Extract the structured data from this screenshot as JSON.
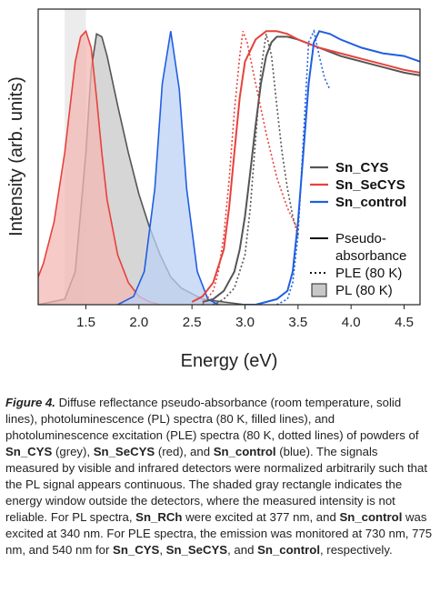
{
  "chart_data": {
    "type": "line",
    "xlabel": "Energy (eV)",
    "ylabel": "Intensity (arb. units)",
    "xlim": [
      1.05,
      4.65
    ],
    "ylim": [
      0,
      1.07
    ],
    "xticks": [
      1.5,
      2.0,
      2.5,
      3.0,
      3.5,
      4.0,
      4.5
    ],
    "xtick_labels": [
      "1.5",
      "2.0",
      "2.5",
      "3.0",
      "3.5",
      "4.0",
      "4.5"
    ],
    "grid": false,
    "legend_placement": "right",
    "shaded_region": {
      "x": [
        1.3,
        1.5
      ],
      "label": ""
    },
    "legend": {
      "series": [
        {
          "name": "Sn_CYS",
          "color": "#555555"
        },
        {
          "name": "Sn_SeCYS",
          "color": "#e8413c"
        },
        {
          "name": "Sn_control",
          "color": "#1f5fe0"
        }
      ],
      "styles": [
        {
          "label": "Pseudo-",
          "label2": "absorbance",
          "style": "solid"
        },
        {
          "label": "PLE (80 K)",
          "style": "dotted"
        },
        {
          "label": "PL (80 K)",
          "style": "filled"
        }
      ]
    },
    "series": [
      {
        "name": "Sn_CYS",
        "kind": "PL",
        "color": "#555555",
        "fill": "#c8c8c8",
        "x": [
          1.05,
          1.3,
          1.4,
          1.5,
          1.55,
          1.6,
          1.65,
          1.7,
          1.8,
          1.9,
          2.0,
          2.1,
          2.2,
          2.3,
          2.4,
          2.6,
          2.8,
          3.0
        ],
        "y": [
          0.0,
          0.02,
          0.12,
          0.55,
          0.85,
          0.98,
          0.97,
          0.9,
          0.72,
          0.55,
          0.4,
          0.28,
          0.18,
          0.1,
          0.06,
          0.02,
          0.01,
          0.0
        ]
      },
      {
        "name": "Sn_SeCYS",
        "kind": "PL",
        "color": "#e8413c",
        "fill": "#f2b8b4",
        "x": [
          1.05,
          1.1,
          1.2,
          1.3,
          1.4,
          1.45,
          1.5,
          1.55,
          1.6,
          1.65,
          1.7,
          1.8,
          1.9,
          2.0,
          2.1,
          2.2
        ],
        "y": [
          0.1,
          0.15,
          0.3,
          0.55,
          0.88,
          0.97,
          0.99,
          0.93,
          0.75,
          0.55,
          0.38,
          0.18,
          0.08,
          0.03,
          0.01,
          0.0
        ]
      },
      {
        "name": "Sn_control",
        "kind": "PL",
        "color": "#1f5fe0",
        "fill": "#bcd2f6",
        "x": [
          1.8,
          1.95,
          2.05,
          2.15,
          2.22,
          2.3,
          2.38,
          2.45,
          2.55,
          2.65,
          2.75
        ],
        "y": [
          0.0,
          0.03,
          0.12,
          0.42,
          0.8,
          0.99,
          0.78,
          0.42,
          0.12,
          0.02,
          0.0
        ]
      },
      {
        "name": "Sn_CYS",
        "kind": "Pseudo-absorbance",
        "color": "#555555",
        "x": [
          2.6,
          2.7,
          2.8,
          2.9,
          2.95,
          3.0,
          3.05,
          3.1,
          3.15,
          3.2,
          3.25,
          3.3,
          3.4,
          3.5,
          3.7,
          3.9,
          4.1,
          4.3,
          4.5,
          4.65
        ],
        "y": [
          0.01,
          0.02,
          0.05,
          0.12,
          0.2,
          0.32,
          0.48,
          0.65,
          0.8,
          0.9,
          0.95,
          0.97,
          0.97,
          0.96,
          0.93,
          0.9,
          0.88,
          0.86,
          0.84,
          0.83
        ]
      },
      {
        "name": "Sn_SeCYS",
        "kind": "Pseudo-absorbance",
        "color": "#e8413c",
        "x": [
          2.5,
          2.6,
          2.7,
          2.8,
          2.85,
          2.9,
          2.95,
          3.0,
          3.1,
          3.2,
          3.3,
          3.4,
          3.5,
          3.7,
          3.9,
          4.1,
          4.3,
          4.5,
          4.65
        ],
        "y": [
          0.01,
          0.03,
          0.08,
          0.2,
          0.35,
          0.55,
          0.75,
          0.88,
          0.96,
          0.99,
          0.99,
          0.98,
          0.96,
          0.93,
          0.91,
          0.89,
          0.87,
          0.85,
          0.84
        ]
      },
      {
        "name": "Sn_control",
        "kind": "Pseudo-absorbance",
        "color": "#1f5fe0",
        "x": [
          3.0,
          3.1,
          3.2,
          3.3,
          3.4,
          3.45,
          3.5,
          3.55,
          3.6,
          3.65,
          3.7,
          3.8,
          3.9,
          4.1,
          4.3,
          4.5,
          4.65
        ],
        "y": [
          0.0,
          0.0,
          0.01,
          0.02,
          0.05,
          0.12,
          0.3,
          0.55,
          0.8,
          0.95,
          0.99,
          0.98,
          0.96,
          0.93,
          0.91,
          0.9,
          0.88
        ]
      },
      {
        "name": "Sn_CYS",
        "kind": "PLE",
        "color": "#555555",
        "x": [
          2.7,
          2.8,
          2.9,
          3.0,
          3.05,
          3.1,
          3.15,
          3.2,
          3.25,
          3.3,
          3.35,
          3.4,
          3.45,
          3.5
        ],
        "y": [
          0.0,
          0.02,
          0.06,
          0.18,
          0.35,
          0.6,
          0.85,
          0.98,
          0.9,
          0.72,
          0.55,
          0.42,
          0.32,
          0.25
        ]
      },
      {
        "name": "Sn_SeCYS",
        "kind": "PLE",
        "color": "#e8413c",
        "x": [
          2.6,
          2.7,
          2.75,
          2.8,
          2.85,
          2.9,
          2.95,
          2.98,
          3.02,
          3.1,
          3.2,
          3.3,
          3.4,
          3.5
        ],
        "y": [
          0.0,
          0.05,
          0.12,
          0.25,
          0.45,
          0.7,
          0.9,
          0.99,
          0.95,
          0.8,
          0.62,
          0.46,
          0.35,
          0.27
        ]
      },
      {
        "name": "Sn_control",
        "kind": "PLE",
        "color": "#1f5fe0",
        "x": [
          3.3,
          3.4,
          3.45,
          3.5,
          3.55,
          3.6,
          3.65,
          3.7,
          3.75,
          3.8
        ],
        "y": [
          0.0,
          0.02,
          0.08,
          0.25,
          0.6,
          0.95,
          0.99,
          0.9,
          0.82,
          0.78
        ]
      }
    ]
  },
  "caption": {
    "fig_label": "Figure 4.",
    "parts": [
      " Diffuse reflectance pseudo-absorbance (room temperature, solid lines), photoluminescence (PL) spectra (80 K, filled lines), and photoluminescence excitation (PLE) spectra (80 K, dotted lines) of powders of ",
      "Sn_CYS",
      " (grey), ",
      "Sn_SeCYS",
      " (red), and ",
      "Sn_control",
      " (blue). The signals measured by visible and infrared detectors were normalized arbitrarily such that the PL signal appears continuous. The shaded gray rectangle indicates the energy window outside the detectors, where the measured intensity is not reliable. For PL spectra, ",
      "Sn_RCh",
      " were excited at 377 nm, and ",
      "Sn_control",
      " was excited at 340 nm. For PLE spectra, the emission was monitored at 730 nm, 775 nm, and 540 nm for ",
      "Sn_CYS",
      ", ",
      "Sn_SeCYS",
      ", and ",
      "Sn_control",
      ", respectively."
    ]
  }
}
